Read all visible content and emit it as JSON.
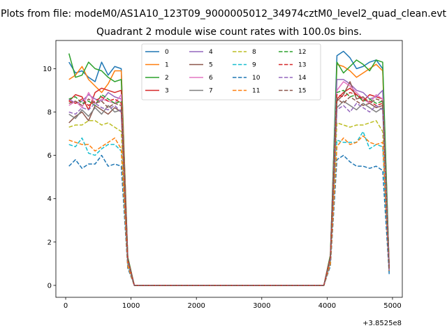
{
  "chart_data": {
    "type": "line",
    "suptitle": "Plots from file: modeM0/AS1A10_123T09_9000005012_34974cztM0_level2_quad_clean.evt",
    "title": "Quadrant 2 module wise count rates with 100.0s bins.",
    "x_offset_label": "+3.8525e8",
    "xlim": [
      -150,
      5150
    ],
    "ylim": [
      -0.55,
      11.3
    ],
    "xticks": [
      0,
      1000,
      2000,
      3000,
      4000,
      5000
    ],
    "yticks": [
      0,
      2,
      4,
      6,
      8,
      10
    ],
    "legend_position": "upper center",
    "legend_ncols": 4,
    "grid": false,
    "x": [
      50,
      150,
      250,
      350,
      450,
      550,
      650,
      750,
      850,
      950,
      1050,
      1150,
      1250,
      1350,
      1450,
      1550,
      1650,
      1750,
      1850,
      1950,
      2050,
      2150,
      2250,
      2350,
      2450,
      2550,
      2650,
      2750,
      2850,
      2950,
      3050,
      3150,
      3250,
      3350,
      3450,
      3550,
      3650,
      3750,
      3850,
      3950,
      4050,
      4150,
      4250,
      4350,
      4450,
      4550,
      4650,
      4750,
      4850,
      4950
    ],
    "series": [
      {
        "name": "0",
        "color": "#1f77b4",
        "dash": "solid",
        "active1": [
          10.3,
          9.8,
          9.9,
          9.6,
          9.4,
          10.3,
          9.7,
          10.1,
          10.0,
          1.3
        ],
        "active2": [
          1.4,
          10.6,
          10.8,
          10.5,
          10.0,
          10.1,
          10.3,
          10.4,
          10.0,
          0.8
        ]
      },
      {
        "name": "1",
        "color": "#ff7f0e",
        "dash": "solid",
        "active1": [
          9.5,
          9.7,
          10.1,
          9.5,
          9.2,
          8.9,
          9.3,
          9.9,
          9.9,
          1.3
        ],
        "active2": [
          1.4,
          10.2,
          10.1,
          9.9,
          9.6,
          9.8,
          10.0,
          10.2,
          9.9,
          0.8
        ]
      },
      {
        "name": "2",
        "color": "#2ca02c",
        "dash": "solid",
        "active1": [
          10.7,
          9.6,
          9.7,
          10.3,
          10.0,
          9.9,
          9.6,
          9.4,
          9.5,
          1.3
        ],
        "active2": [
          1.4,
          10.3,
          9.8,
          10.1,
          10.4,
          10.2,
          9.9,
          10.4,
          10.3,
          0.8
        ]
      },
      {
        "name": "3",
        "color": "#d62728",
        "dash": "solid",
        "active1": [
          8.5,
          8.8,
          8.7,
          8.1,
          8.9,
          9.1,
          9.0,
          8.9,
          9.0,
          1.2
        ],
        "active2": [
          1.3,
          8.6,
          8.9,
          9.1,
          8.8,
          8.5,
          8.8,
          8.7,
          8.6,
          0.7
        ]
      },
      {
        "name": "4",
        "color": "#9467bd",
        "dash": "solid",
        "active1": [
          8.6,
          8.4,
          8.5,
          8.8,
          8.6,
          8.5,
          8.9,
          8.7,
          8.6,
          1.2
        ],
        "active2": [
          1.3,
          9.5,
          9.5,
          9.3,
          9.0,
          8.9,
          8.6,
          8.7,
          9.0,
          0.7
        ]
      },
      {
        "name": "5",
        "color": "#8c564b",
        "dash": "solid",
        "active1": [
          7.5,
          7.8,
          8.0,
          7.6,
          8.3,
          8.1,
          7.9,
          8.2,
          8.0,
          1.1
        ],
        "active2": [
          1.2,
          8.5,
          8.8,
          9.4,
          8.6,
          8.7,
          8.4,
          8.2,
          8.3,
          0.7
        ]
      },
      {
        "name": "6",
        "color": "#e377c2",
        "dash": "solid",
        "active1": [
          8.3,
          8.5,
          8.2,
          8.9,
          8.4,
          8.6,
          8.5,
          8.4,
          8.8,
          1.2
        ],
        "active2": [
          1.3,
          9.0,
          9.4,
          9.2,
          8.9,
          8.6,
          8.4,
          8.8,
          8.6,
          0.7
        ]
      },
      {
        "name": "7",
        "color": "#7f7f7f",
        "dash": "solid",
        "active1": [
          7.9,
          7.7,
          8.1,
          7.8,
          8.2,
          7.9,
          8.3,
          8.0,
          8.1,
          1.1
        ],
        "active2": [
          1.2,
          8.2,
          8.5,
          8.3,
          8.1,
          8.4,
          8.2,
          8.0,
          8.2,
          0.7
        ]
      },
      {
        "name": "8",
        "color": "#bcbd22",
        "dash": "dashed",
        "active1": [
          7.3,
          7.4,
          7.4,
          7.6,
          7.6,
          7.4,
          7.5,
          7.3,
          7.1,
          1.0
        ],
        "active2": [
          1.1,
          7.5,
          7.4,
          7.3,
          7.4,
          7.4,
          7.5,
          7.6,
          7.1,
          0.6
        ]
      },
      {
        "name": "9",
        "color": "#17becf",
        "dash": "dashed",
        "active1": [
          6.5,
          6.4,
          6.8,
          6.1,
          6.0,
          6.3,
          6.5,
          6.5,
          6.2,
          0.9
        ],
        "active2": [
          1.0,
          6.7,
          6.6,
          6.6,
          6.6,
          7.1,
          6.3,
          6.5,
          6.4,
          0.6
        ]
      },
      {
        "name": "10",
        "color": "#1f77b4",
        "dash": "dashed",
        "active1": [
          5.5,
          5.8,
          5.4,
          5.6,
          5.6,
          6.0,
          5.5,
          5.6,
          5.5,
          0.8
        ],
        "active2": [
          0.9,
          5.8,
          6.0,
          5.7,
          5.5,
          5.5,
          5.4,
          5.5,
          5.3,
          0.5
        ]
      },
      {
        "name": "11",
        "color": "#ff7f0e",
        "dash": "dashed",
        "active1": [
          6.7,
          6.6,
          6.5,
          6.5,
          6.2,
          6.4,
          6.6,
          6.8,
          6.3,
          0.9
        ],
        "active2": [
          1.0,
          6.4,
          6.8,
          6.5,
          6.6,
          6.9,
          6.6,
          6.5,
          6.6,
          0.6
        ]
      },
      {
        "name": "12",
        "color": "#2ca02c",
        "dash": "dashed",
        "active1": [
          8.6,
          8.7,
          8.4,
          8.5,
          8.3,
          8.8,
          8.6,
          8.4,
          8.5,
          1.2
        ],
        "active2": [
          1.3,
          8.9,
          9.0,
          8.7,
          8.8,
          8.5,
          8.6,
          8.4,
          8.5,
          0.7
        ]
      },
      {
        "name": "13",
        "color": "#d62728",
        "dash": "dashed",
        "active1": [
          8.5,
          8.4,
          8.6,
          8.3,
          8.5,
          8.7,
          8.5,
          8.6,
          8.4,
          1.2
        ],
        "active2": [
          1.3,
          8.8,
          8.7,
          8.9,
          8.8,
          8.6,
          8.5,
          8.3,
          8.4,
          0.7
        ]
      },
      {
        "name": "14",
        "color": "#9467bd",
        "dash": "dashed",
        "active1": [
          8.0,
          7.9,
          8.2,
          8.1,
          8.4,
          8.2,
          8.1,
          8.3,
          8.0,
          1.1
        ],
        "active2": [
          1.2,
          8.1,
          8.3,
          8.0,
          8.4,
          8.2,
          8.0,
          8.3,
          8.1,
          0.7
        ]
      },
      {
        "name": "15",
        "color": "#8c564b",
        "dash": "dashed",
        "active1": [
          8.4,
          8.5,
          8.3,
          8.6,
          8.4,
          8.5,
          8.2,
          8.4,
          8.3,
          1.2
        ],
        "active2": [
          1.3,
          8.6,
          8.4,
          8.7,
          8.5,
          8.3,
          8.4,
          8.6,
          8.5,
          0.7
        ]
      }
    ]
  }
}
